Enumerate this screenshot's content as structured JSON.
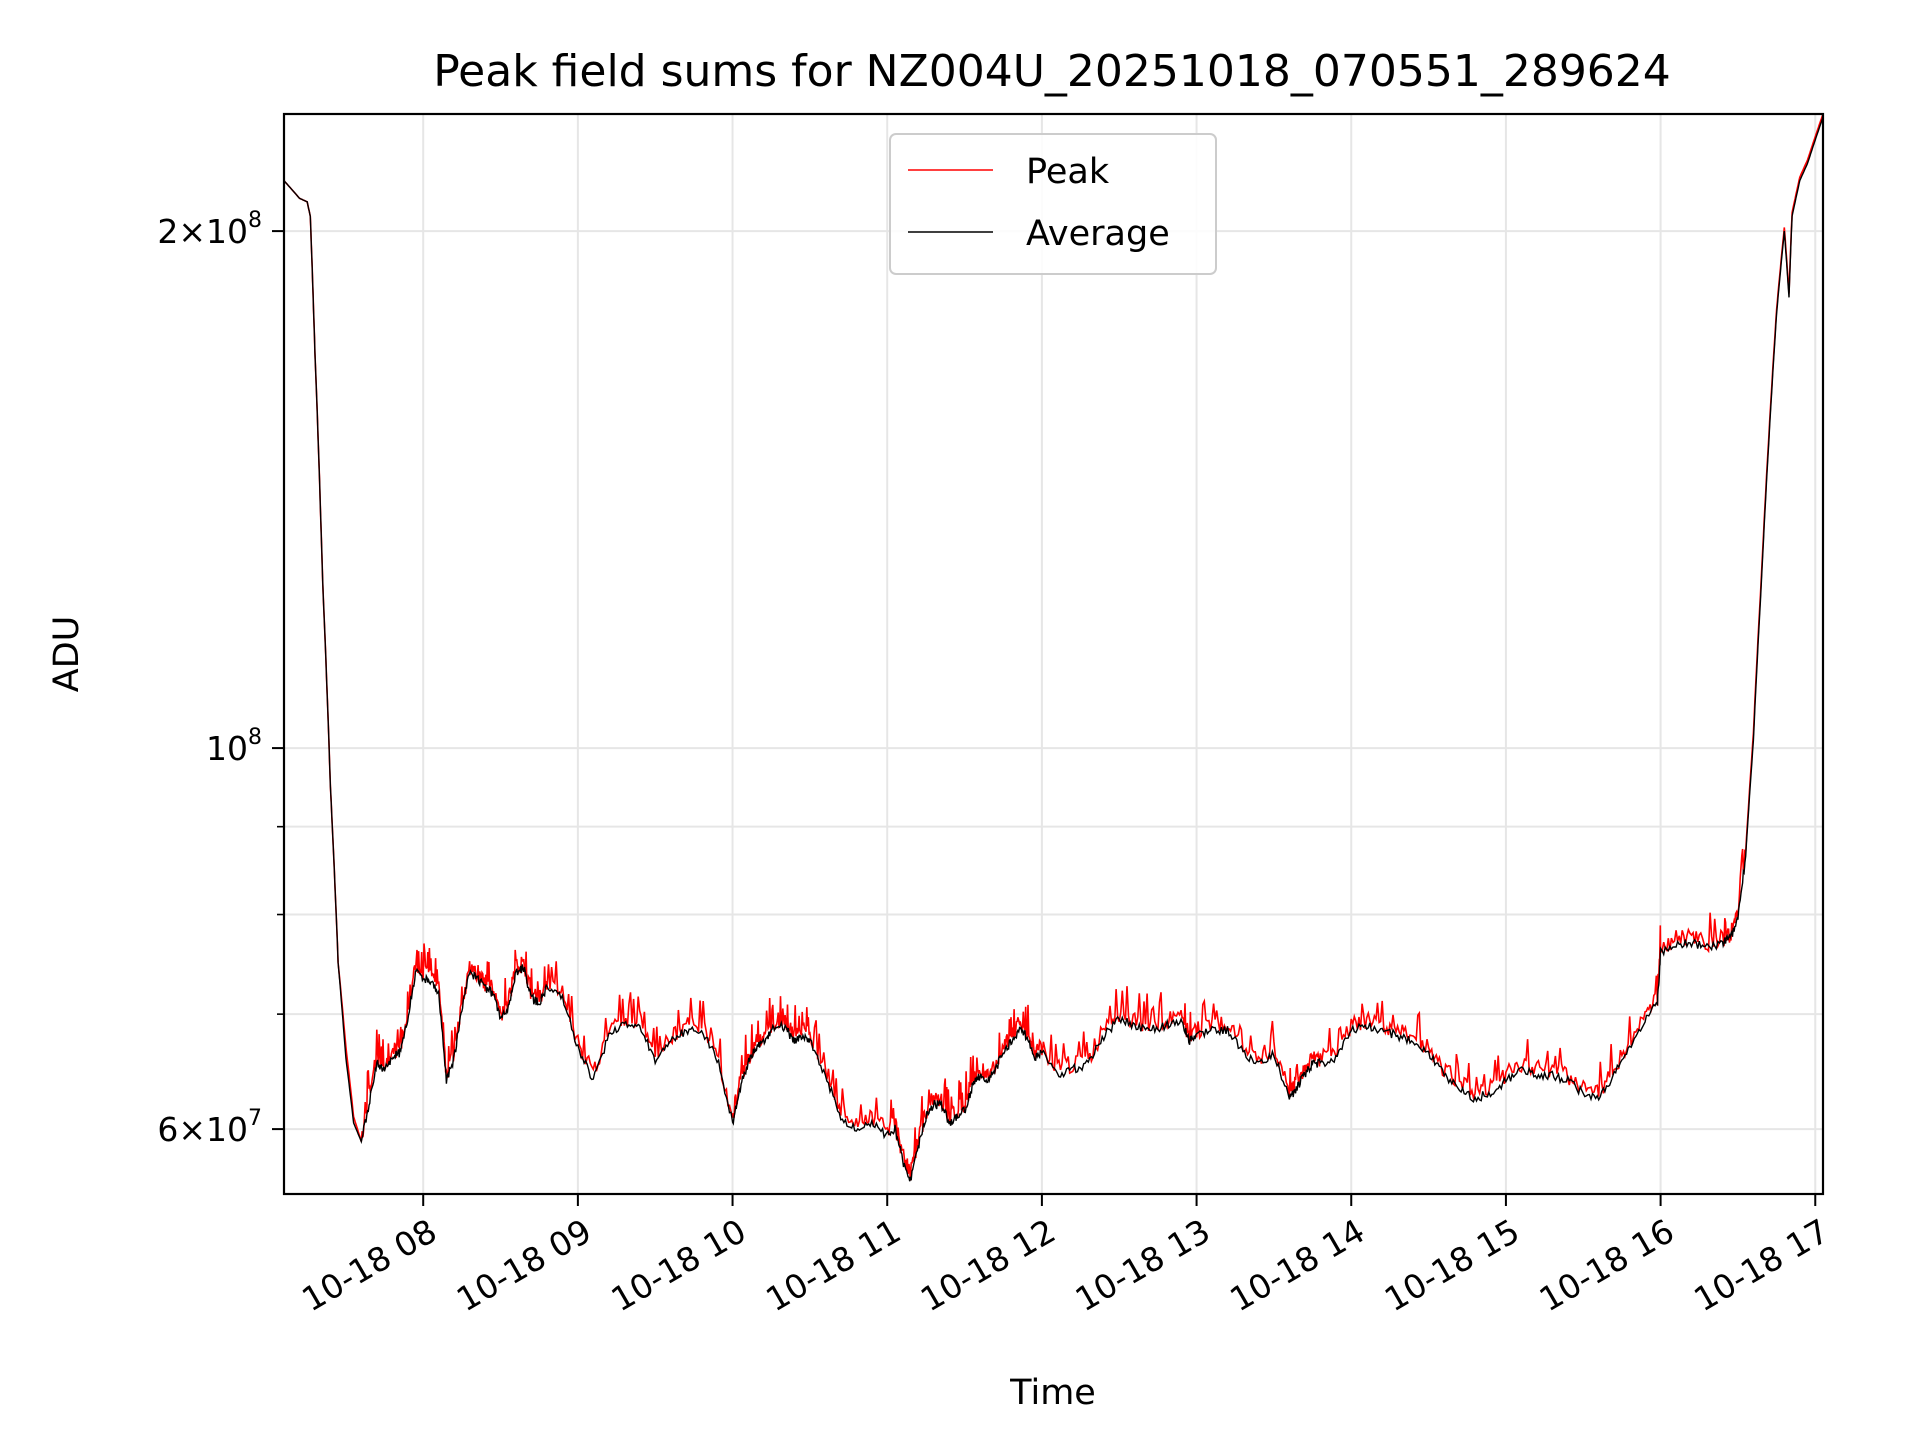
{
  "chart_data": {
    "type": "line",
    "title": "Peak field sums for NZ004U_20251018_070551_289624",
    "xlabel": "Time",
    "ylabel": "ADU",
    "x_unit": "hours since 10-18 00:00",
    "xlim": [
      7.1,
      17.05
    ],
    "ylim": [
      55000000,
      234000000
    ],
    "yscale": "log",
    "grid": true,
    "legend_position": "top-center",
    "x_ticks": [
      {
        "value": 8,
        "label": "10-18 08"
      },
      {
        "value": 9,
        "label": "10-18 09"
      },
      {
        "value": 10,
        "label": "10-18 10"
      },
      {
        "value": 11,
        "label": "10-18 11"
      },
      {
        "value": 12,
        "label": "10-18 12"
      },
      {
        "value": 13,
        "label": "10-18 13"
      },
      {
        "value": 14,
        "label": "10-18 14"
      },
      {
        "value": 15,
        "label": "10-18 15"
      },
      {
        "value": 16,
        "label": "10-18 16"
      },
      {
        "value": 17,
        "label": "10-18 17"
      }
    ],
    "y_major_ticks": [
      {
        "value": 60000000,
        "mantissa": "6",
        "exponent": "7"
      },
      {
        "value": 100000000,
        "mantissa": "",
        "exponent": "8"
      },
      {
        "value": 200000000,
        "mantissa": "2",
        "exponent": "8"
      }
    ],
    "y_minor_ticks": [
      70000000,
      80000000,
      90000000
    ],
    "series": [
      {
        "name": "Peak",
        "color": "#ff0000",
        "x": [
          7.1,
          7.2,
          7.25,
          7.27,
          7.3,
          7.35,
          7.4,
          7.45,
          7.5,
          7.55,
          7.6,
          7.65,
          7.7,
          7.75,
          7.8,
          7.85,
          7.9,
          7.95,
          8.0,
          8.05,
          8.1,
          8.15,
          8.2,
          8.25,
          8.3,
          8.35,
          8.4,
          8.45,
          8.5,
          8.55,
          8.6,
          8.65,
          8.7,
          8.75,
          8.8,
          8.9,
          9.0,
          9.1,
          9.2,
          9.3,
          9.4,
          9.5,
          9.6,
          9.7,
          9.8,
          9.9,
          10.0,
          10.05,
          10.1,
          10.15,
          10.2,
          10.25,
          10.3,
          10.35,
          10.4,
          10.45,
          10.5,
          10.6,
          10.7,
          10.8,
          10.9,
          11.0,
          11.05,
          11.1,
          11.15,
          11.2,
          11.25,
          11.3,
          11.35,
          11.4,
          11.45,
          11.5,
          11.55,
          11.6,
          11.65,
          11.7,
          11.75,
          11.8,
          11.85,
          11.9,
          11.95,
          12.0,
          12.1,
          12.2,
          12.3,
          12.4,
          12.5,
          12.6,
          12.7,
          12.8,
          12.9,
          12.95,
          13.0,
          13.1,
          13.2,
          13.3,
          13.4,
          13.5,
          13.6,
          13.65,
          13.7,
          13.75,
          13.8,
          13.9,
          14.0,
          14.1,
          14.2,
          14.3,
          14.4,
          14.5,
          14.6,
          14.7,
          14.8,
          14.9,
          15.0,
          15.1,
          15.2,
          15.3,
          15.4,
          15.5,
          15.6,
          15.7,
          15.8,
          15.9,
          15.98,
          16.0,
          16.1,
          16.2,
          16.3,
          16.4,
          16.45,
          16.5,
          16.55,
          16.6,
          16.65,
          16.7,
          16.75,
          16.8,
          16.83,
          16.85,
          16.9,
          16.95,
          17.0,
          17.05
        ],
        "values": [
          214000000,
          209000000,
          208000000,
          204000000,
          170000000,
          125000000,
          95000000,
          75000000,
          67000000,
          61000000,
          59000000,
          63000000,
          66000000,
          65000000,
          66500000,
          67000000,
          70000000,
          74500000,
          74000000,
          73500000,
          72500000,
          64500000,
          66500000,
          71000000,
          74500000,
          74000000,
          73000000,
          72500000,
          70000000,
          71000000,
          74500000,
          75000000,
          72000000,
          71500000,
          73000000,
          72000000,
          67500000,
          64500000,
          68500000,
          69500000,
          69500000,
          66000000,
          68000000,
          69000000,
          69000000,
          66500000,
          61000000,
          64000000,
          66000000,
          67500000,
          68000000,
          69000000,
          69500000,
          69000000,
          68000000,
          68500000,
          68000000,
          65000000,
          61500000,
          60500000,
          61000000,
          60000000,
          60500000,
          58000000,
          56500000,
          59000000,
          61500000,
          62500000,
          62500000,
          61000000,
          61500000,
          62000000,
          64000000,
          65000000,
          64500000,
          65500000,
          67000000,
          68000000,
          69000000,
          68500000,
          66500000,
          67000000,
          65000000,
          65500000,
          66000000,
          68500000,
          70000000,
          69500000,
          69000000,
          69500000,
          70000000,
          68000000,
          68500000,
          69000000,
          69000000,
          67000000,
          66000000,
          67000000,
          63000000,
          64000000,
          65000000,
          66000000,
          66000000,
          66500000,
          69000000,
          69500000,
          69000000,
          68500000,
          68000000,
          67000000,
          65000000,
          64000000,
          63000000,
          63500000,
          64500000,
          65500000,
          65000000,
          65000000,
          64500000,
          63500000,
          63000000,
          65000000,
          67500000,
          70000000,
          71500000,
          76500000,
          77500000,
          77500000,
          77000000,
          77500000,
          78000000,
          80000000,
          87000000,
          102000000,
          125000000,
          152000000,
          180000000,
          201000000,
          184000000,
          205000000,
          215000000,
          220000000,
          227000000,
          234000000
        ]
      },
      {
        "name": "Average",
        "color": "#000000",
        "x": [
          7.1,
          7.2,
          7.25,
          7.27,
          7.3,
          7.35,
          7.4,
          7.45,
          7.5,
          7.55,
          7.6,
          7.65,
          7.7,
          7.75,
          7.8,
          7.85,
          7.9,
          7.95,
          8.0,
          8.05,
          8.1,
          8.15,
          8.2,
          8.25,
          8.3,
          8.35,
          8.4,
          8.45,
          8.5,
          8.55,
          8.6,
          8.65,
          8.7,
          8.75,
          8.8,
          8.9,
          9.0,
          9.1,
          9.2,
          9.3,
          9.4,
          9.5,
          9.6,
          9.7,
          9.8,
          9.9,
          10.0,
          10.05,
          10.1,
          10.15,
          10.2,
          10.25,
          10.3,
          10.35,
          10.4,
          10.45,
          10.5,
          10.6,
          10.7,
          10.8,
          10.9,
          11.0,
          11.05,
          11.1,
          11.15,
          11.2,
          11.25,
          11.3,
          11.35,
          11.4,
          11.45,
          11.5,
          11.55,
          11.6,
          11.65,
          11.7,
          11.75,
          11.8,
          11.85,
          11.9,
          11.95,
          12.0,
          12.1,
          12.2,
          12.3,
          12.4,
          12.5,
          12.6,
          12.7,
          12.8,
          12.9,
          12.95,
          13.0,
          13.1,
          13.2,
          13.3,
          13.4,
          13.5,
          13.6,
          13.65,
          13.7,
          13.75,
          13.8,
          13.9,
          14.0,
          14.1,
          14.2,
          14.3,
          14.4,
          14.5,
          14.6,
          14.7,
          14.8,
          14.9,
          15.0,
          15.1,
          15.2,
          15.3,
          15.4,
          15.5,
          15.6,
          15.7,
          15.8,
          15.9,
          15.98,
          16.0,
          16.1,
          16.2,
          16.3,
          16.4,
          16.45,
          16.5,
          16.55,
          16.6,
          16.65,
          16.7,
          16.75,
          16.8,
          16.83,
          16.85,
          16.9,
          16.95,
          17.0,
          17.05
        ],
        "values": [
          214000000,
          209000000,
          208000000,
          204000000,
          170000000,
          125000000,
          95000000,
          75000000,
          66000000,
          60500000,
          59000000,
          62000000,
          65500000,
          65000000,
          66000000,
          66500000,
          69500000,
          74000000,
          73500000,
          73000000,
          72000000,
          64000000,
          66000000,
          70500000,
          74000000,
          73500000,
          72500000,
          72000000,
          69500000,
          70500000,
          74000000,
          74500000,
          71500000,
          71000000,
          72500000,
          71500000,
          67000000,
          64000000,
          68000000,
          69000000,
          69000000,
          65500000,
          67500000,
          68500000,
          68500000,
          66000000,
          60500000,
          63500000,
          65500000,
          67000000,
          67500000,
          68500000,
          69000000,
          68500000,
          67500000,
          68000000,
          67500000,
          64500000,
          61000000,
          60000000,
          60500000,
          59500000,
          60000000,
          57500000,
          56000000,
          58500000,
          61000000,
          62000000,
          62000000,
          60500000,
          61000000,
          61500000,
          63500000,
          64500000,
          64000000,
          65000000,
          66500000,
          67500000,
          68500000,
          68000000,
          66000000,
          66500000,
          64500000,
          65000000,
          65500000,
          68000000,
          69500000,
          69000000,
          68500000,
          69000000,
          69500000,
          67500000,
          68000000,
          68500000,
          68500000,
          66500000,
          65500000,
          66500000,
          62500000,
          63500000,
          64500000,
          65500000,
          65500000,
          66000000,
          68500000,
          69000000,
          68500000,
          68000000,
          67500000,
          66500000,
          64500000,
          63500000,
          62500000,
          63000000,
          64000000,
          65000000,
          64500000,
          64500000,
          64000000,
          63000000,
          62500000,
          64500000,
          67000000,
          69500000,
          71000000,
          76000000,
          77000000,
          77000000,
          76500000,
          77000000,
          77500000,
          79500000,
          86500000,
          101000000,
          124000000,
          151000000,
          179000000,
          200000000,
          183000000,
          204000000,
          214000000,
          219000000,
          226000000,
          233000000
        ]
      }
    ]
  }
}
